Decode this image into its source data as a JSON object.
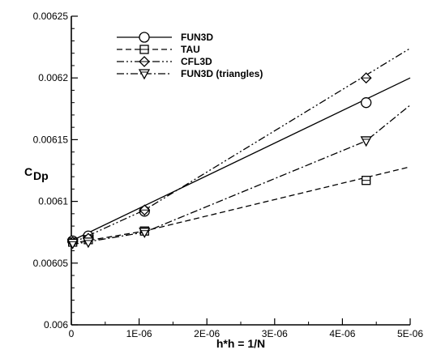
{
  "chart_data": {
    "type": "line",
    "title": "",
    "xlabel": "h*h = 1/N",
    "ylabel_main": "C",
    "ylabel_sub": "Dp",
    "xlim": [
      0,
      5e-06
    ],
    "ylim": [
      0.006,
      0.00625
    ],
    "x_ticks": [
      0,
      1e-06,
      2e-06,
      3e-06,
      4e-06,
      5e-06
    ],
    "x_tick_labels": [
      "0",
      "1E-06",
      "2E-06",
      "3E-06",
      "4E-06",
      "5E-06"
    ],
    "y_ticks": [
      0.006,
      0.00605,
      0.0061,
      0.00615,
      0.0062,
      0.00625
    ],
    "y_tick_labels": [
      "0.006",
      "0.00605",
      "0.0061",
      "0.00615",
      "0.0062",
      "0.00625"
    ],
    "grid": false,
    "legend_position": "top-left",
    "series": [
      {
        "name": "FUN3D",
        "line_style": "solid",
        "marker": "circle",
        "points": [
          [
            2e-08,
            0.006068
          ],
          [
            2.5e-07,
            0.006072
          ],
          [
            1.08e-06,
            0.006092
          ],
          [
            4.35e-06,
            0.00618
          ]
        ],
        "fit": [
          [
            0,
            0.006068
          ],
          [
            5e-06,
            0.0062
          ]
        ]
      },
      {
        "name": "TAU",
        "line_style": "dashed",
        "marker": "square",
        "points": [
          [
            2e-08,
            0.006067
          ],
          [
            2.5e-07,
            0.006069
          ],
          [
            1.08e-06,
            0.006076
          ],
          [
            4.35e-06,
            0.006117
          ]
        ],
        "fit": [
          [
            0,
            0.006066
          ],
          [
            1.08e-06,
            0.006076
          ],
          [
            5e-06,
            0.006128
          ]
        ]
      },
      {
        "name": "CFL3D",
        "line_style": "dashdotdot",
        "marker": "diamond",
        "points": [
          [
            2e-08,
            0.006067
          ],
          [
            2.5e-07,
            0.00607
          ],
          [
            1.08e-06,
            0.006093
          ],
          [
            4.35e-06,
            0.0062
          ]
        ],
        "fit": [
          [
            0,
            0.006066
          ],
          [
            1.08e-06,
            0.006093
          ],
          [
            5e-06,
            0.006224
          ]
        ]
      },
      {
        "name": "FUN3D (triangles)",
        "line_style": "dashdot",
        "marker": "triangle-down",
        "points": [
          [
            2e-08,
            0.006066
          ],
          [
            2.5e-07,
            0.006067
          ],
          [
            1.08e-06,
            0.006075
          ],
          [
            4.35e-06,
            0.006149
          ]
        ],
        "fit": [
          [
            0,
            0.006065
          ],
          [
            1.08e-06,
            0.006075
          ],
          [
            4.35e-06,
            0.006149
          ],
          [
            5e-06,
            0.006178
          ]
        ]
      }
    ]
  }
}
